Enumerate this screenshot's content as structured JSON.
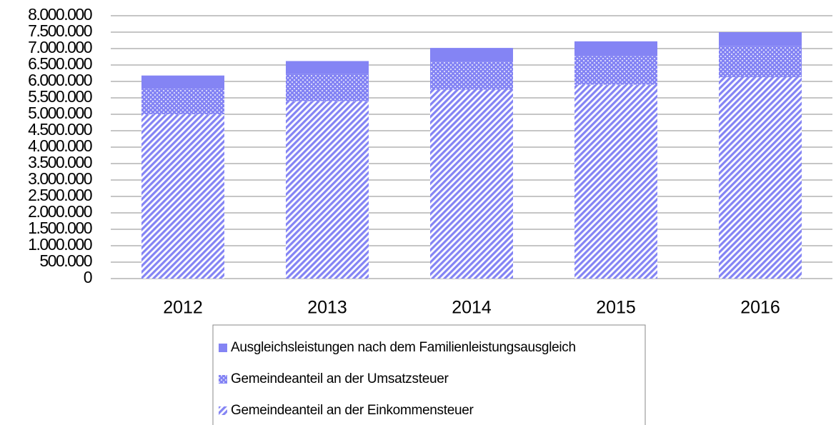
{
  "chart_data": {
    "type": "stacked_bar",
    "categories": [
      "2012",
      "2013",
      "2014",
      "2015",
      "2016"
    ],
    "series": [
      {
        "name": "Gemeindeanteil an der Einkommensteuer",
        "color": "#8484f4",
        "pattern": "stripes",
        "values": [
          5000000,
          5400000,
          5750000,
          5900000,
          6130000
        ]
      },
      {
        "name": "Gemeindeanteil an der Umsatzsteuer",
        "color": "#8484f4",
        "pattern": "dots",
        "values": [
          780000,
          820000,
          850000,
          870000,
          940000
        ]
      },
      {
        "name": "Ausgleichsleistungen nach dem Familienleistungsausgleich",
        "color": "#8484f4",
        "pattern": "solid",
        "values": [
          400000,
          400000,
          420000,
          450000,
          430000
        ]
      }
    ],
    "ylim": [
      0,
      8000000
    ],
    "yticks": [
      0,
      {
        "value": 500000,
        "label": "500.000"
      },
      {
        "value": 1000000,
        "label": "1.000.000"
      },
      {
        "value": 1500000,
        "label": "1.500.000"
      },
      {
        "value": 2000000,
        "label": "2.000.000"
      },
      {
        "value": 2500000,
        "label": "2.500.000"
      },
      {
        "value": 3000000,
        "label": "3.000.000"
      },
      {
        "value": 3500000,
        "label": "3.500.000"
      },
      {
        "value": 4000000,
        "label": "4.000.000"
      },
      {
        "value": 4500000,
        "label": "4.500.000"
      },
      {
        "value": 5000000,
        "label": "5.000.000"
      },
      {
        "value": 5500000,
        "label": "5.500.000"
      },
      {
        "value": 6000000,
        "label": "6.000.000"
      },
      {
        "value": 6500000,
        "label": "6.500.000"
      },
      {
        "value": 7000000,
        "label": "7.000.000"
      },
      {
        "value": 7500000,
        "label": "7.500.000"
      },
      {
        "value": 8000000,
        "label": "8.000.000"
      }
    ],
    "grid": true,
    "legend": "bottom"
  }
}
